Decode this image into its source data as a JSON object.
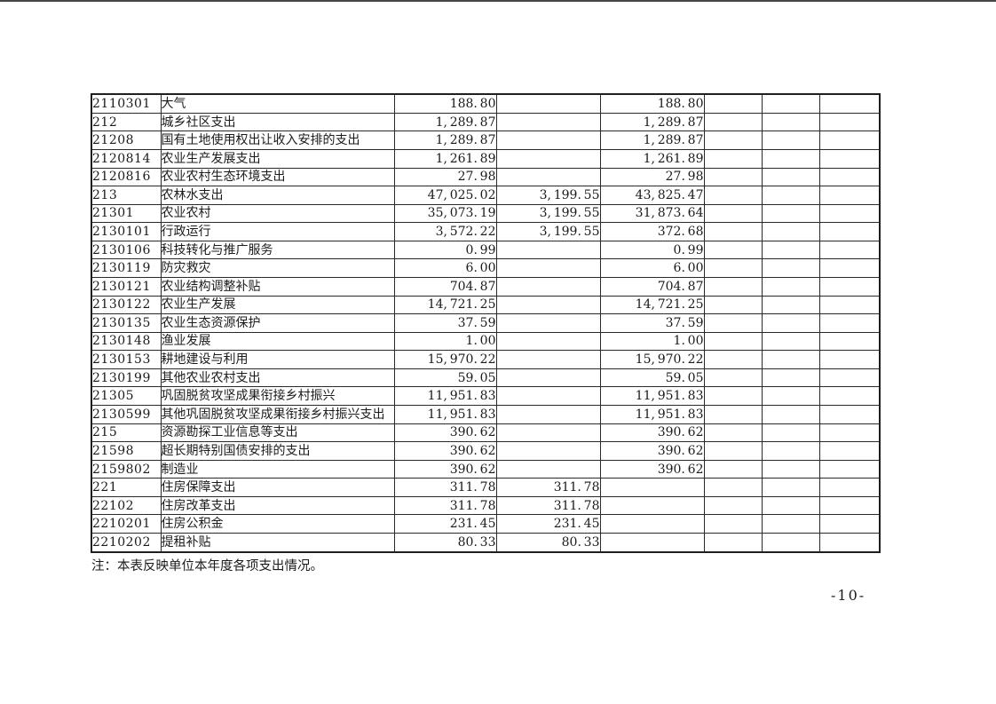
{
  "document": {
    "note": "注：本表反映单位本年度各项支出情况。",
    "page_number": "-10-"
  },
  "table": {
    "rows": [
      {
        "code": "2110301",
        "name": "大气",
        "amounts": [
          "188.80",
          "",
          "188.80"
        ]
      },
      {
        "code": "212",
        "name": "城乡社区支出",
        "amounts": [
          "1,289.87",
          "",
          "1,289.87"
        ]
      },
      {
        "code": "21208",
        "name": "国有土地使用权出让收入安排的支出",
        "amounts": [
          "1,289.87",
          "",
          "1,289.87"
        ]
      },
      {
        "code": "2120814",
        "name": "农业生产发展支出",
        "amounts": [
          "1,261.89",
          "",
          "1,261.89"
        ]
      },
      {
        "code": "2120816",
        "name": "农业农村生态环境支出",
        "amounts": [
          "27.98",
          "",
          "27.98"
        ]
      },
      {
        "code": "213",
        "name": "农林水支出",
        "amounts": [
          "47,025.02",
          "3,199.55",
          "43,825.47"
        ]
      },
      {
        "code": "21301",
        "name": "农业农村",
        "amounts": [
          "35,073.19",
          "3,199.55",
          "31,873.64"
        ]
      },
      {
        "code": "2130101",
        "name": "行政运行",
        "amounts": [
          "3,572.22",
          "3,199.55",
          "372.68"
        ]
      },
      {
        "code": "2130106",
        "name": "科技转化与推广服务",
        "amounts": [
          "0.99",
          "",
          "0.99"
        ]
      },
      {
        "code": "2130119",
        "name": "防灾救灾",
        "amounts": [
          "6.00",
          "",
          "6.00"
        ]
      },
      {
        "code": "2130121",
        "name": "农业结构调整补贴",
        "amounts": [
          "704.87",
          "",
          "704.87"
        ]
      },
      {
        "code": "2130122",
        "name": "农业生产发展",
        "amounts": [
          "14,721.25",
          "",
          "14,721.25"
        ]
      },
      {
        "code": "2130135",
        "name": "农业生态资源保护",
        "amounts": [
          "37.59",
          "",
          "37.59"
        ]
      },
      {
        "code": "2130148",
        "name": "渔业发展",
        "amounts": [
          "1.00",
          "",
          "1.00"
        ]
      },
      {
        "code": "2130153",
        "name": "耕地建设与利用",
        "amounts": [
          "15,970.22",
          "",
          "15,970.22"
        ]
      },
      {
        "code": "2130199",
        "name": "其他农业农村支出",
        "amounts": [
          "59.05",
          "",
          "59.05"
        ]
      },
      {
        "code": "21305",
        "name": "巩固脱贫攻坚成果衔接乡村振兴",
        "amounts": [
          "11,951.83",
          "",
          "11,951.83"
        ]
      },
      {
        "code": "2130599",
        "name": "其他巩固脱贫攻坚成果衔接乡村振兴支出",
        "amounts": [
          "11,951.83",
          "",
          "11,951.83"
        ]
      },
      {
        "code": "215",
        "name": "资源勘探工业信息等支出",
        "amounts": [
          "390.62",
          "",
          "390.62"
        ]
      },
      {
        "code": "21598",
        "name": "超长期特别国债安排的支出",
        "amounts": [
          "390.62",
          "",
          "390.62"
        ]
      },
      {
        "code": "2159802",
        "name": "制造业",
        "amounts": [
          "390.62",
          "",
          "390.62"
        ]
      },
      {
        "code": "221",
        "name": "住房保障支出",
        "amounts": [
          "311.78",
          "311.78",
          ""
        ]
      },
      {
        "code": "22102",
        "name": "住房改革支出",
        "amounts": [
          "311.78",
          "311.78",
          ""
        ]
      },
      {
        "code": "2210201",
        "name": "住房公积金",
        "amounts": [
          "231.45",
          "231.45",
          ""
        ]
      },
      {
        "code": "2210202",
        "name": "提租补贴",
        "amounts": [
          "80.33",
          "80.33",
          ""
        ]
      }
    ]
  }
}
